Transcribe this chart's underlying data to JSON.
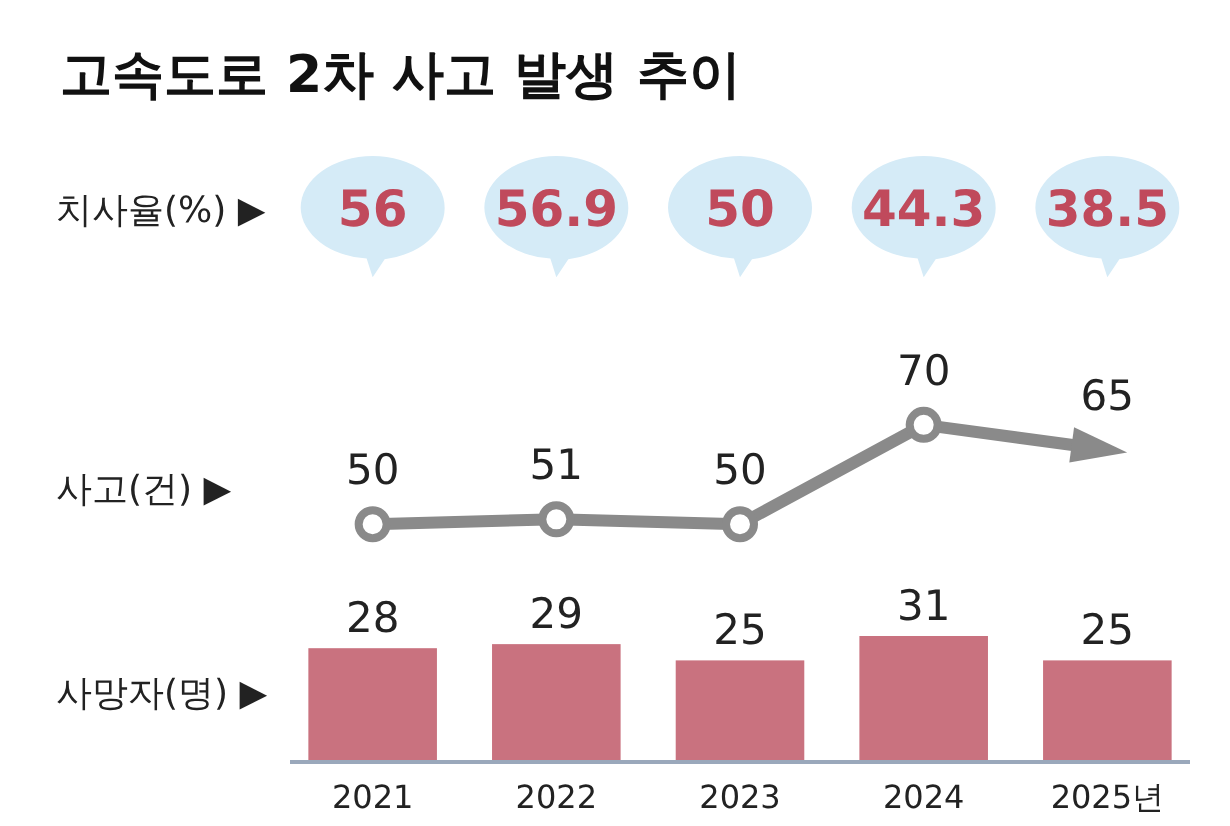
{
  "chart_data": [
    {
      "type": "other",
      "title": "고속도로 2차 사고 발생 추이",
      "ylabel": "치사율(%) ▶",
      "values": [
        56,
        56.9,
        50,
        44.3,
        38.5
      ],
      "color": "#d5ebf7",
      "data_labels": true
    },
    {
      "type": "line",
      "ylabel": "사고(건) ▶",
      "series": [
        {
          "color": "#8a8a8a",
          "values": [
            50,
            51,
            50,
            70,
            65
          ]
        }
      ],
      "marker": "circle",
      "data_labels": true
    },
    {
      "type": "bar",
      "ylabel": "사망자(명) ▶",
      "categories": [
        "2021",
        "2022",
        "2023",
        "2024",
        "2025년"
      ],
      "values": [
        28,
        29,
        25,
        31,
        25
      ],
      "color": "#c9727f",
      "data_labels": true,
      "tick_labels": "x"
    }
  ]
}
